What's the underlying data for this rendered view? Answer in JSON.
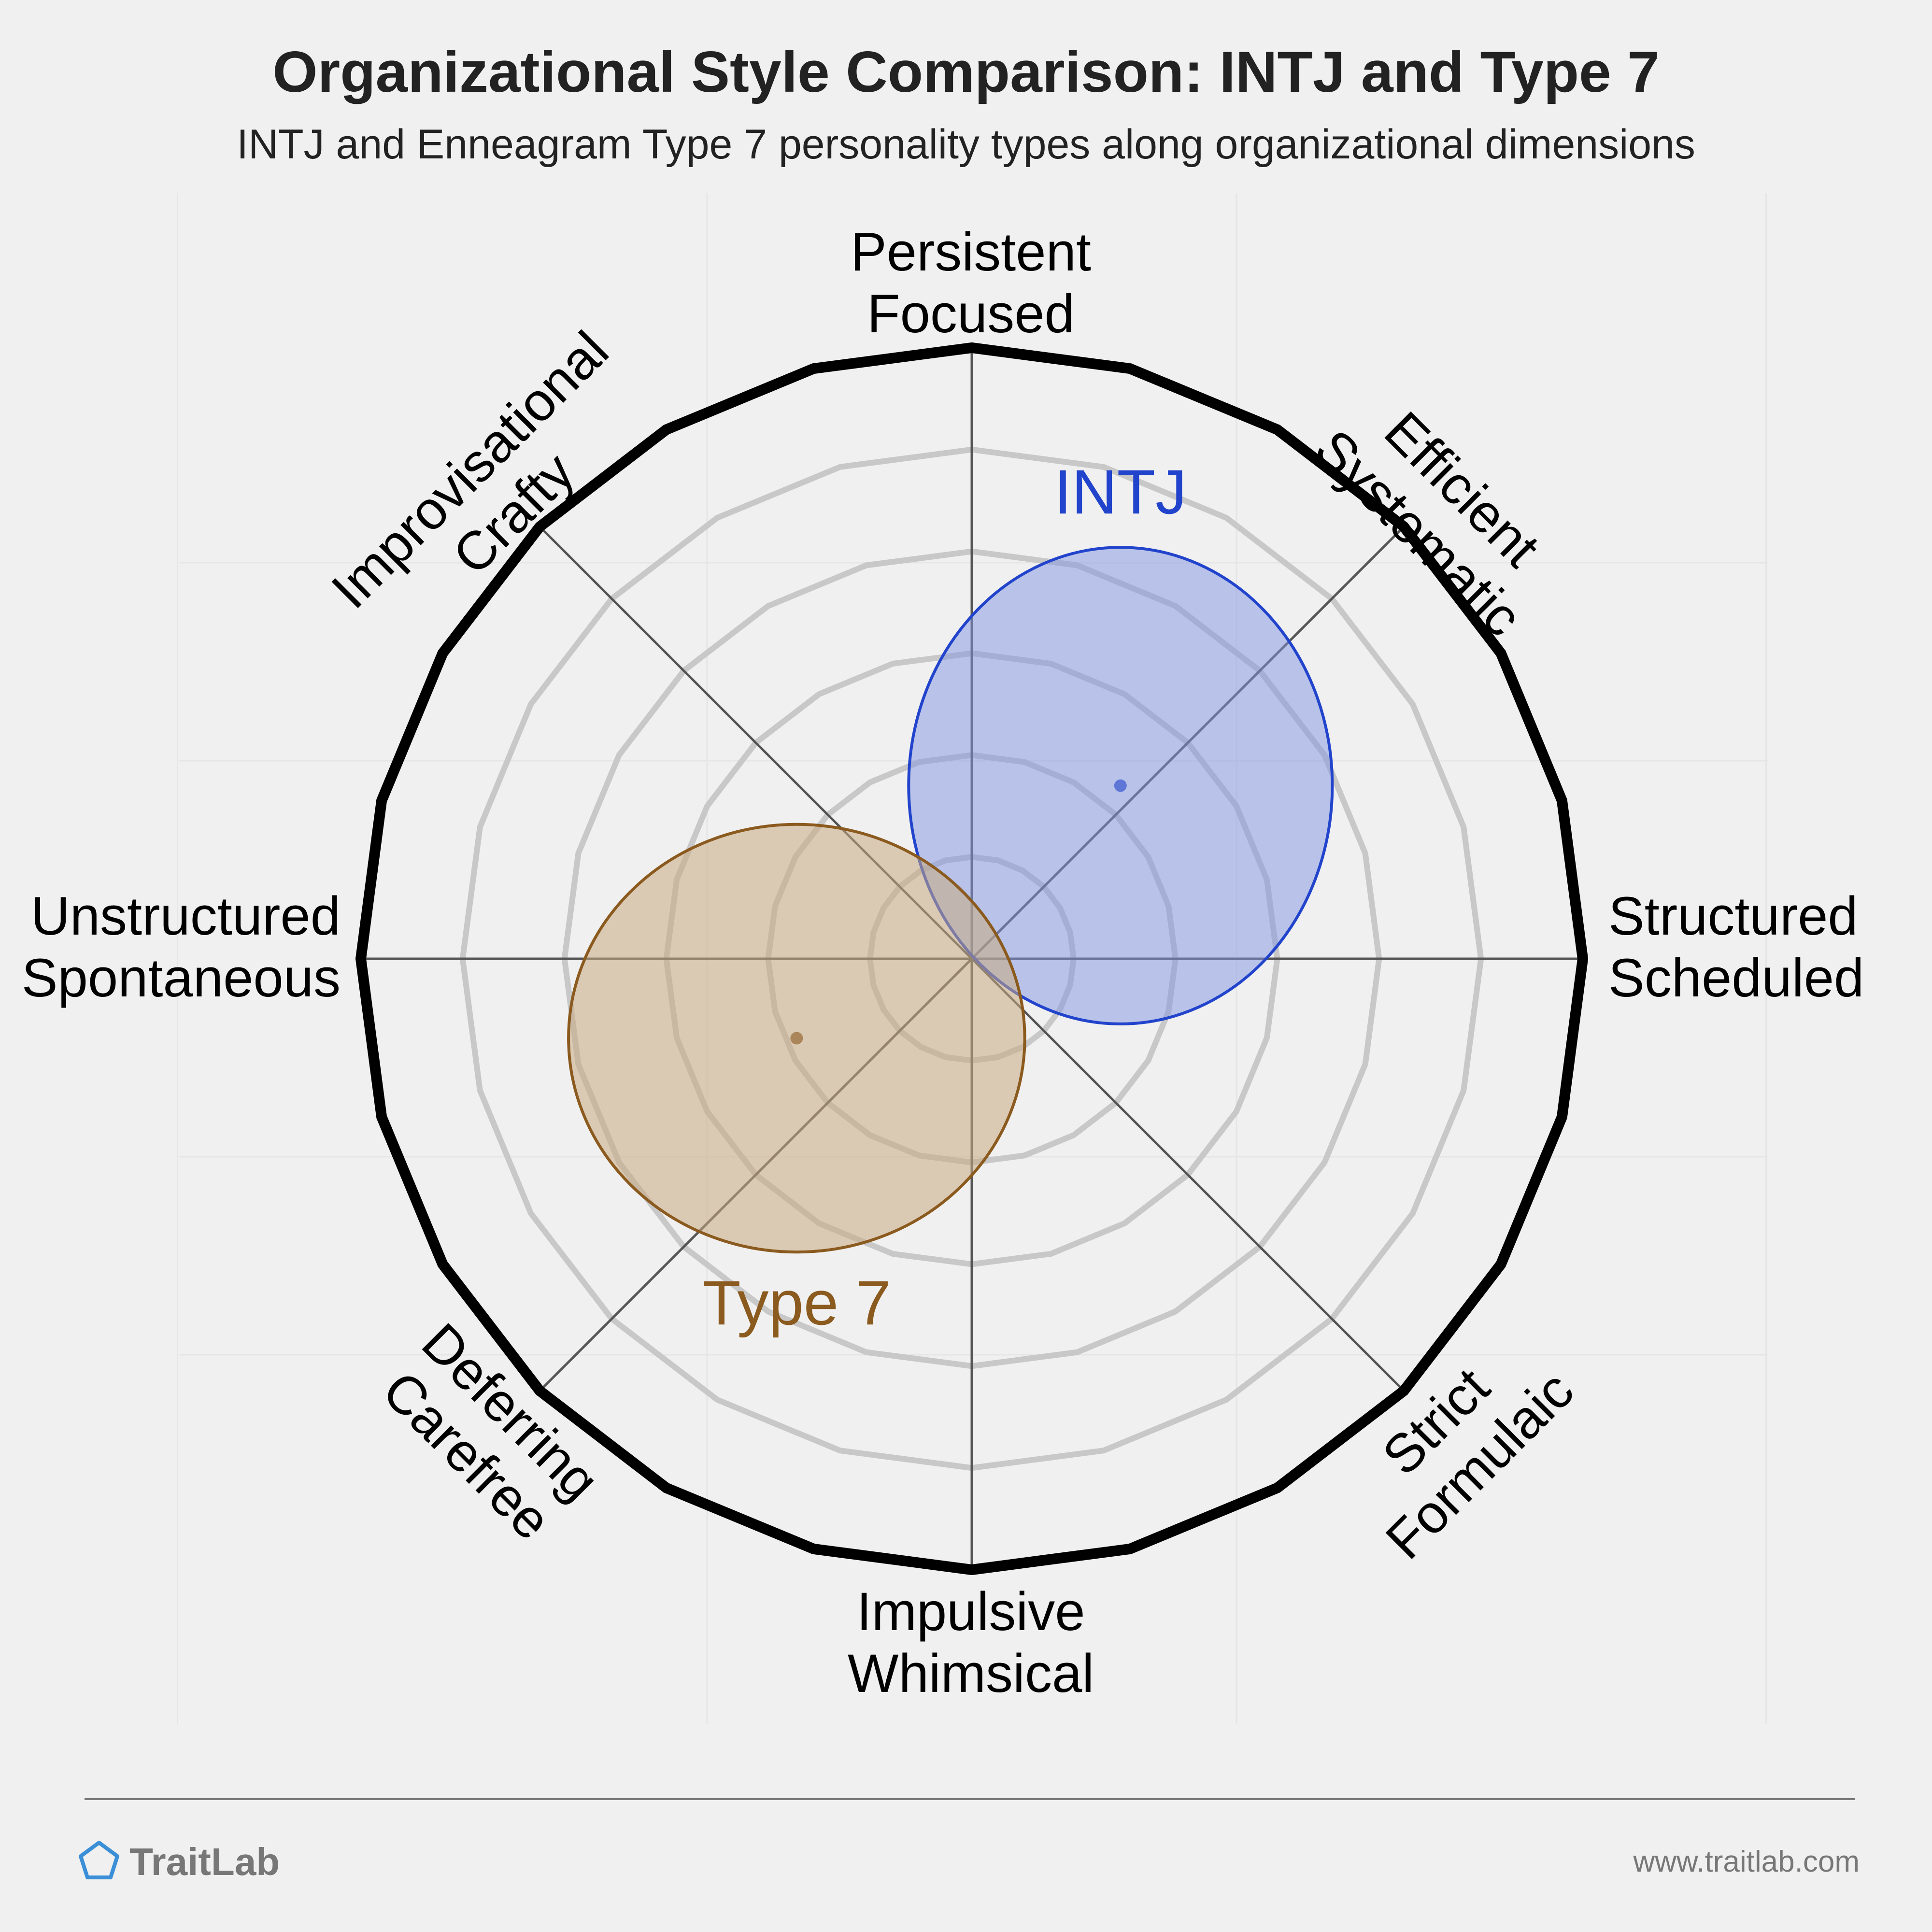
{
  "title": "Organizational Style Comparison: INTJ and Type 7",
  "subtitle": "INTJ and Enneagram Type 7 personality types along organizational dimensions",
  "footer": {
    "brand": "TraitLab",
    "url": "www.traitlab.com",
    "logo_icon": "pentagon-icon"
  },
  "colors": {
    "background": "#f0f0f0",
    "title": "#222222",
    "rim": "#000000",
    "ring": "#c8c8c8",
    "axis": "#555555",
    "footer_text": "#777777",
    "logo": "#3a8fd6"
  },
  "chart_data": {
    "type": "scatter",
    "axis_range": [
      -3,
      3
    ],
    "ring_count": 6,
    "grid": true,
    "axes": [
      {
        "angle": 0,
        "label": [
          "Structured",
          "Scheduled"
        ]
      },
      {
        "angle": 45,
        "label": [
          "Efficient",
          "Systematic"
        ]
      },
      {
        "angle": 90,
        "label": [
          "Persistent",
          "Focused"
        ]
      },
      {
        "angle": 135,
        "label": [
          "Improvisational",
          "Crafty"
        ]
      },
      {
        "angle": 180,
        "label": [
          "Unstructured",
          "Spontaneous"
        ]
      },
      {
        "angle": 225,
        "label": [
          "Deferring",
          "Carefree"
        ]
      },
      {
        "angle": 270,
        "label": [
          "Impulsive",
          "Whimsical"
        ]
      },
      {
        "angle": 315,
        "label": [
          "Strict",
          "Formulaic"
        ]
      }
    ],
    "series": [
      {
        "name": "INTJ",
        "center": [
          0.73,
          0.85
        ],
        "radius": [
          1.04,
          1.17
        ],
        "color": "#2244cc",
        "fill": "rgba(130,150,225,0.5)"
      },
      {
        "name": "Type 7",
        "center": [
          -0.86,
          -0.39
        ],
        "radius": [
          1.12,
          1.05
        ],
        "color": "#8b5a1e",
        "fill": "rgba(200,170,130,0.55)"
      }
    ]
  }
}
